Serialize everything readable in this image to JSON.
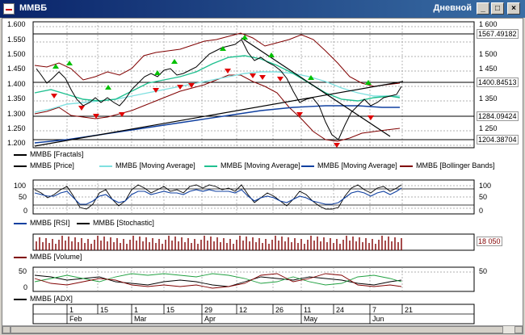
{
  "window": {
    "title": "ММВБ",
    "mode": "Дневной"
  },
  "price_panel": {
    "left_ticks": [
      "1.600",
      "1.550",
      "1.500",
      "1.450",
      "1.400",
      "1.350",
      "1.300",
      "1.250",
      "1.200"
    ],
    "right_ticks": [
      "1 600",
      "1 550",
      "1 500",
      "1 450",
      "1 400",
      "1 350",
      "1 300",
      "1 250",
      "1 200"
    ],
    "price_boxes": [
      "1567.49182",
      "1400.84513",
      "1284.09424",
      "1204.38704"
    ],
    "legend": [
      {
        "label": "ММВБ [Fractals]",
        "color": "#000000"
      },
      {
        "label": "ММВБ [Price]",
        "color": "#000000"
      },
      {
        "label": "ММВБ [Moving Average]",
        "color": "#80e0e0"
      },
      {
        "label": "ММВБ [Moving Average]",
        "color": "#20c090"
      },
      {
        "label": "ММВБ [Moving Average]",
        "color": "#1040a0"
      },
      {
        "label": "ММВБ [Bollinger Bands]",
        "color": "#800000"
      }
    ]
  },
  "oscillator_panel": {
    "left_ticks": [
      "100",
      "50",
      "0"
    ],
    "right_ticks": [
      "100",
      "50",
      "0"
    ],
    "legend": [
      {
        "label": "ММВБ [RSI]",
        "color": "#1040a0"
      },
      {
        "label": "ММВБ [Stochastic]",
        "color": "#000000"
      }
    ]
  },
  "volume_panel": {
    "value": "18 050",
    "legend": [
      {
        "label": "ММВБ [Volume]",
        "color": "#800000"
      }
    ]
  },
  "adx_panel": {
    "left_ticks": [
      "50",
      "0"
    ],
    "right_ticks": [
      "50"
    ],
    "legend": [
      {
        "label": "ММВБ [ADX]",
        "color": "#000000"
      }
    ]
  },
  "x_axis": {
    "days": [
      "1",
      "15",
      "1",
      "15",
      "29",
      "12",
      "26",
      "11",
      "24",
      "7",
      "21"
    ],
    "months": [
      "Feb",
      "Mar",
      "Apr",
      "May",
      "Jun"
    ]
  }
}
